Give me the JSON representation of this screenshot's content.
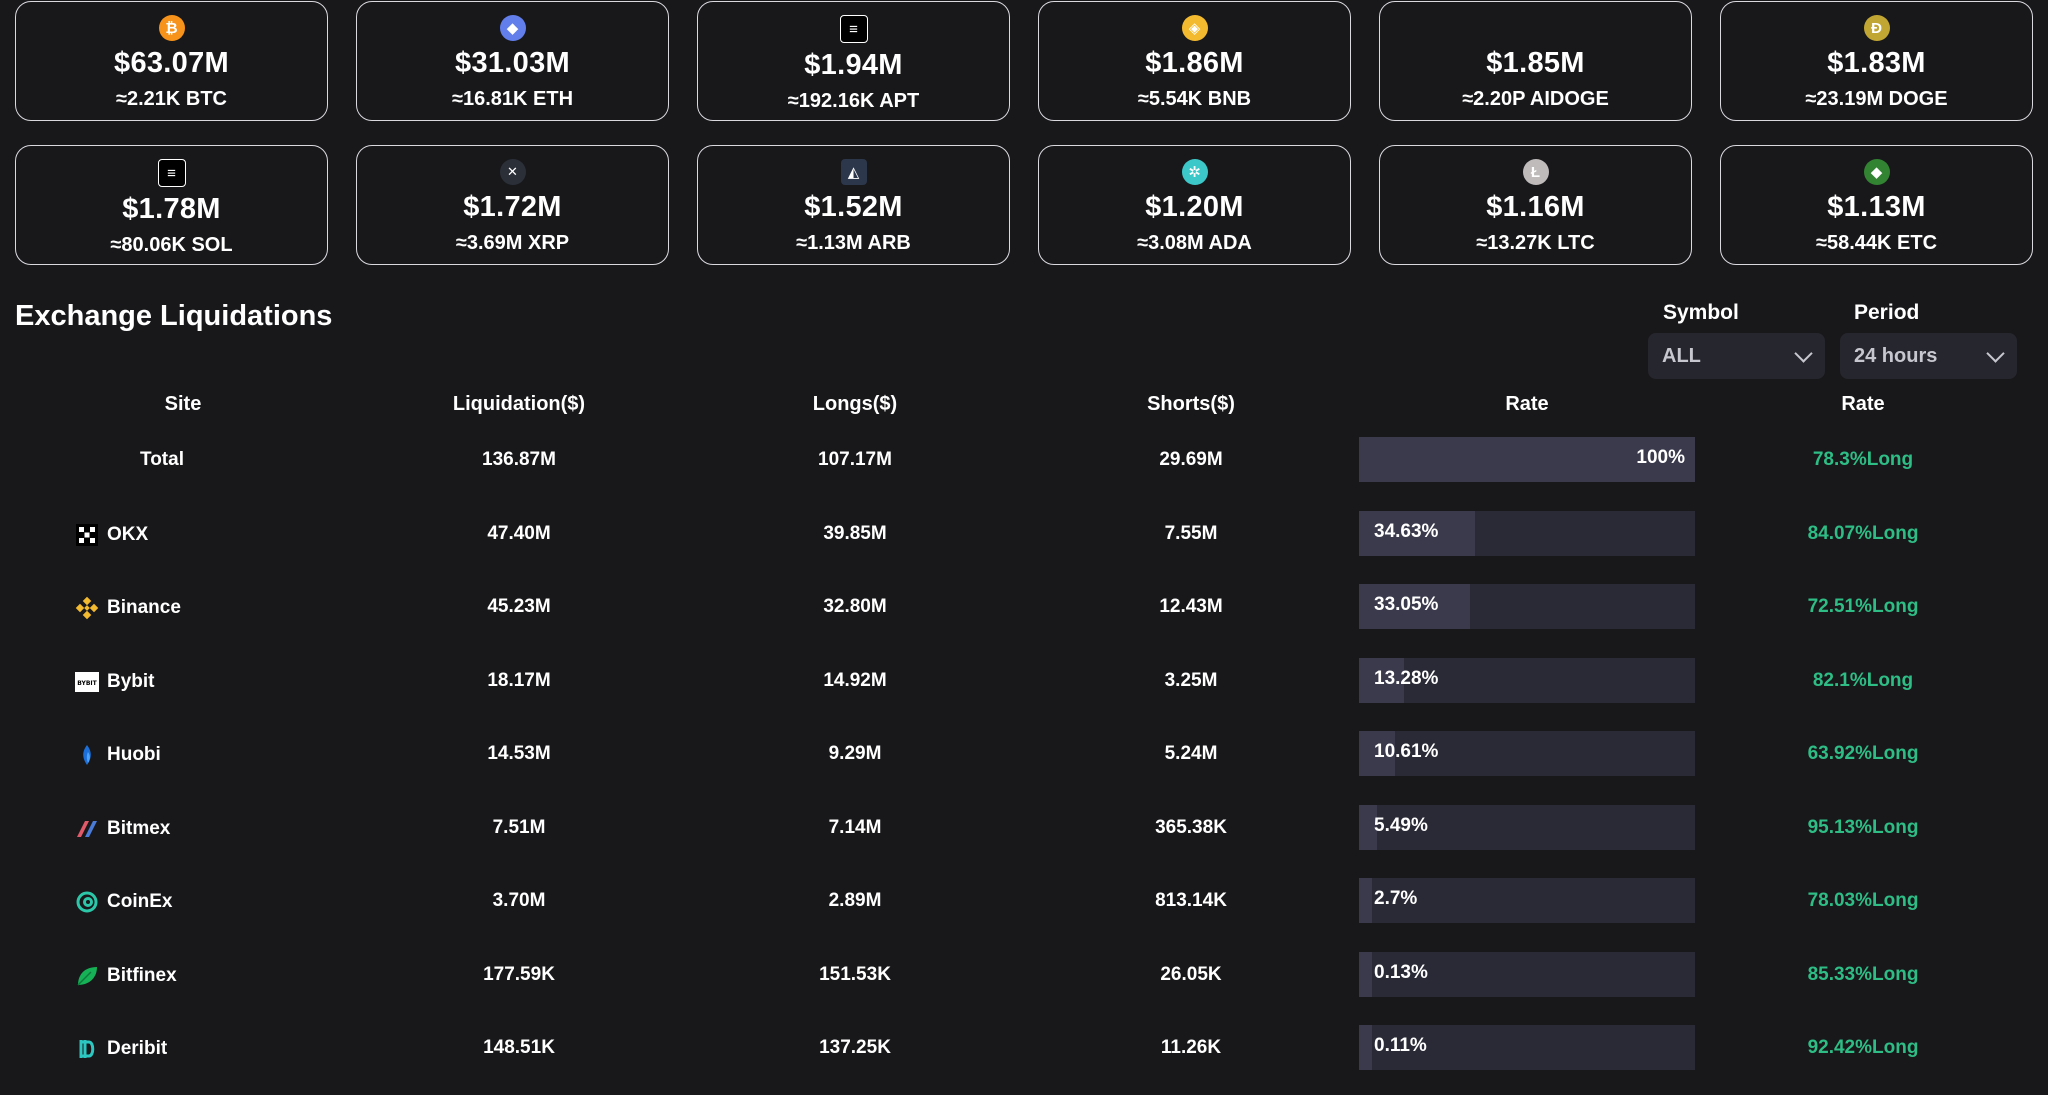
{
  "coins": [
    {
      "usd": "$63.07M",
      "amount": "≈2.21K BTC",
      "icon": "bitcoin-icon",
      "color": "#f7931a",
      "glyph": "₿"
    },
    {
      "usd": "$31.03M",
      "amount": "≈16.81K ETH",
      "icon": "ethereum-icon",
      "color": "#627eea",
      "glyph": "◆"
    },
    {
      "usd": "$1.94M",
      "amount": "≈192.16K APT",
      "icon": "aptos-icon",
      "color": "#000000",
      "glyph": "≡"
    },
    {
      "usd": "$1.86M",
      "amount": "≈5.54K BNB",
      "icon": "bnb-icon",
      "color": "#f3ba2f",
      "glyph": "◈"
    },
    {
      "usd": "$1.85M",
      "amount": "≈2.20P AIDOGE",
      "icon": "",
      "color": "",
      "glyph": ""
    },
    {
      "usd": "$1.83M",
      "amount": "≈23.19M DOGE",
      "icon": "dogecoin-icon",
      "color": "#c2a633",
      "glyph": "Ð"
    },
    {
      "usd": "$1.78M",
      "amount": "≈80.06K SOL",
      "icon": "solana-icon",
      "color": "#000000",
      "glyph": "≡"
    },
    {
      "usd": "$1.72M",
      "amount": "≈3.69M XRP",
      "icon": "xrp-icon",
      "color": "#23292f",
      "glyph": "✕"
    },
    {
      "usd": "$1.52M",
      "amount": "≈1.13M ARB",
      "icon": "arbitrum-icon",
      "color": "#2d374b",
      "glyph": "◭"
    },
    {
      "usd": "$1.20M",
      "amount": "≈3.08M ADA",
      "icon": "cardano-icon",
      "color": "#3cc8c8",
      "glyph": "✲"
    },
    {
      "usd": "$1.16M",
      "amount": "≈13.27K LTC",
      "icon": "litecoin-icon",
      "color": "#bfbbbb",
      "glyph": "Ł"
    },
    {
      "usd": "$1.13M",
      "amount": "≈58.44K ETC",
      "icon": "ethereum-classic-icon",
      "color": "#328332",
      "glyph": "◆"
    }
  ],
  "section_title": "Exchange Liquidations",
  "filters": {
    "symbol_label": "Symbol",
    "symbol_value": "ALL",
    "period_label": "Period",
    "period_value": "24 hours"
  },
  "table": {
    "headers": [
      "Site",
      "Liquidation($)",
      "Longs($)",
      "Shorts($)",
      "Rate",
      "Rate"
    ],
    "rows": [
      {
        "site": "Total",
        "icon": "",
        "liquidation": "136.87M",
        "longs": "107.17M",
        "shorts": "29.69M",
        "share": "100%",
        "share_value": 100,
        "rate": "78.3%Long"
      },
      {
        "site": "OKX",
        "icon": "okx-icon",
        "liquidation": "47.40M",
        "longs": "39.85M",
        "shorts": "7.55M",
        "share": "34.63%",
        "share_value": 34.63,
        "rate": "84.07%Long"
      },
      {
        "site": "Binance",
        "icon": "binance-icon",
        "liquidation": "45.23M",
        "longs": "32.80M",
        "shorts": "12.43M",
        "share": "33.05%",
        "share_value": 33.05,
        "rate": "72.51%Long"
      },
      {
        "site": "Bybit",
        "icon": "bybit-icon",
        "liquidation": "18.17M",
        "longs": "14.92M",
        "shorts": "3.25M",
        "share": "13.28%",
        "share_value": 13.28,
        "rate": "82.1%Long"
      },
      {
        "site": "Huobi",
        "icon": "huobi-icon",
        "liquidation": "14.53M",
        "longs": "9.29M",
        "shorts": "5.24M",
        "share": "10.61%",
        "share_value": 10.61,
        "rate": "63.92%Long"
      },
      {
        "site": "Bitmex",
        "icon": "bitmex-icon",
        "liquidation": "7.51M",
        "longs": "7.14M",
        "shorts": "365.38K",
        "share": "5.49%",
        "share_value": 5.49,
        "rate": "95.13%Long"
      },
      {
        "site": "CoinEx",
        "icon": "coinex-icon",
        "liquidation": "3.70M",
        "longs": "2.89M",
        "shorts": "813.14K",
        "share": "2.7%",
        "share_value": 2.7,
        "rate": "78.03%Long"
      },
      {
        "site": "Bitfinex",
        "icon": "bitfinex-icon",
        "liquidation": "177.59K",
        "longs": "151.53K",
        "shorts": "26.05K",
        "share": "0.13%",
        "share_value": 0.13,
        "rate": "85.33%Long"
      },
      {
        "site": "Deribit",
        "icon": "deribit-icon",
        "liquidation": "148.51K",
        "longs": "137.25K",
        "shorts": "11.26K",
        "share": "0.11%",
        "share_value": 0.11,
        "rate": "92.42%Long"
      }
    ]
  },
  "colors": {
    "long_green": "#2ebd85",
    "bar_track": "#2a2a36",
    "bar_fill": "#3a3a4c"
  }
}
